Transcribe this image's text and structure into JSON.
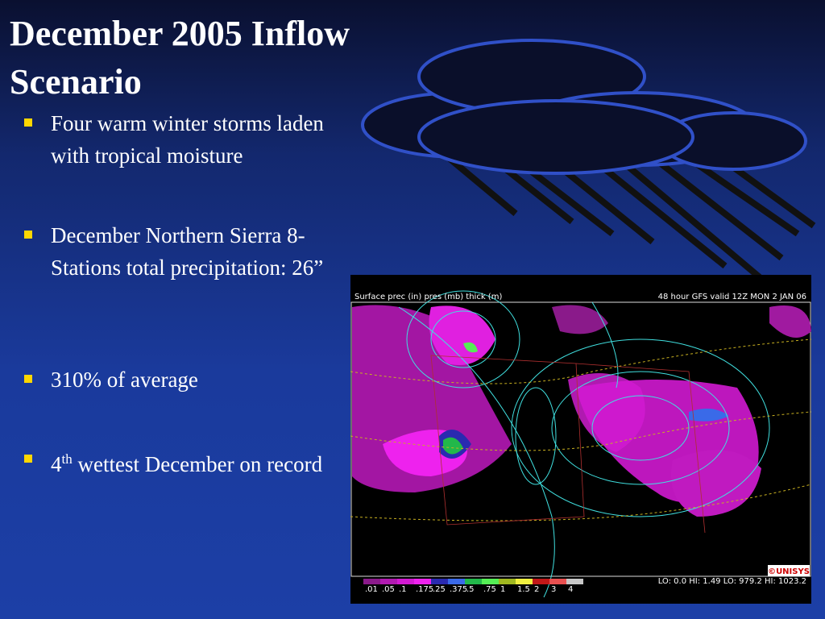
{
  "title": "December 2005 Inflow Scenario",
  "bullets": [
    {
      "text": "Four warm winter storms laden with tropical moisture"
    },
    {
      "text": "December Northern Sierra 8-Stations total precipitation: 26”"
    },
    {
      "text": "310% of average"
    },
    {
      "text": "4",
      "superscript": "th",
      "rest": " wettest December on record"
    }
  ],
  "map": {
    "header_left": "Surface prec (in) pres (mb) thick (m)",
    "header_right": "48 hour GFS valid 12Z MON  2 JAN 06",
    "legend": [
      {
        "label": ".01",
        "color": "#8a1a8a"
      },
      {
        "label": ".05",
        "color": "#b01ab0"
      },
      {
        "label": ".1",
        "color": "#d21ad2"
      },
      {
        "label": ".175",
        "color": "#ee22ee"
      },
      {
        "label": ".25",
        "color": "#2a2ab0"
      },
      {
        "label": ".375",
        "color": "#3a6ae8"
      },
      {
        "label": ".5",
        "color": "#22b84a"
      },
      {
        "label": ".75",
        "color": "#55ee55"
      },
      {
        "label": "1",
        "color": "#a0b820"
      },
      {
        "label": "1.5",
        "color": "#f0f040"
      },
      {
        "label": "2",
        "color": "#c01818"
      },
      {
        "label": "3",
        "color": "#e85050"
      },
      {
        "label": "4",
        "color": "#c8c8c8"
      }
    ],
    "stats": "LO:   0.0  HI:   1.49  LO:  979.2  HI:  1023.2",
    "logo": "©UNISYS"
  }
}
